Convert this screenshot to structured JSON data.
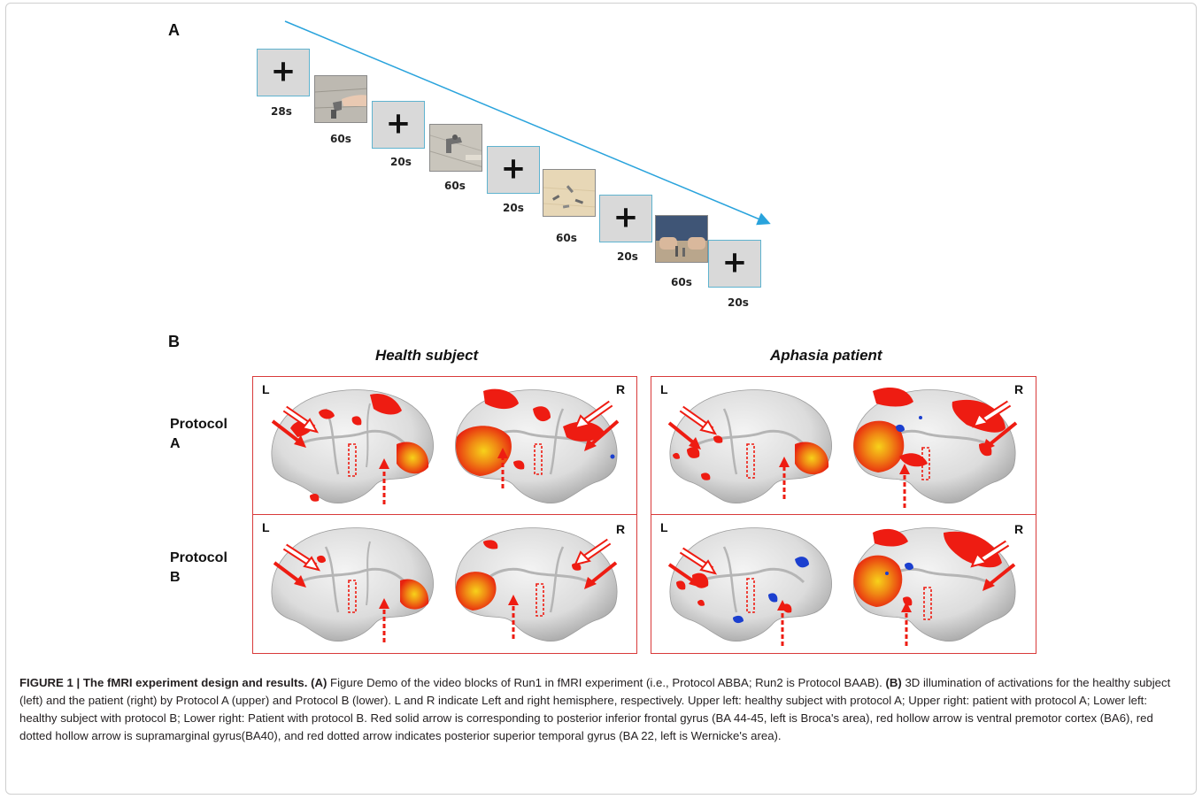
{
  "panel_a": {
    "label": "A",
    "timeline": [
      {
        "kind": "fixation",
        "symbol": "+",
        "duration": "28s"
      },
      {
        "kind": "video",
        "scene": "hand-turning-faucet",
        "duration": "60s"
      },
      {
        "kind": "fixation",
        "symbol": "+",
        "duration": "20s"
      },
      {
        "kind": "video",
        "scene": "faucet-on-wall",
        "duration": "60s"
      },
      {
        "kind": "fixation",
        "symbol": "+",
        "duration": "20s"
      },
      {
        "kind": "video",
        "scene": "objects-on-table",
        "duration": "60s"
      },
      {
        "kind": "fixation",
        "symbol": "+",
        "duration": "20s"
      },
      {
        "kind": "video",
        "scene": "hands-manipulating-objects",
        "duration": "60s"
      },
      {
        "kind": "fixation",
        "symbol": "+",
        "duration": "20s"
      }
    ],
    "arrow_color": "#29a3dc"
  },
  "panel_b": {
    "label": "B",
    "columns": [
      "Health subject",
      "Aphasia patient"
    ],
    "rows": [
      "Protocol\nA",
      "Protocol\nB"
    ],
    "hemisphere_left": "L",
    "hemisphere_right": "R",
    "frame_color": "#d93a3a",
    "activation_color": "#ee1c12",
    "deactivation_color": "#1b3fcf"
  },
  "caption": {
    "figure_label": "FIGURE 1 | The fMRI experiment design and results.",
    "a_tag": "(A)",
    "a_text": "Figure Demo of the video blocks of Run1 in fMRI experiment (i.e., Protocol ABBA; Run2 is Protocol BAAB).",
    "b_tag": "(B)",
    "b_text": "3D illumination of activations for the healthy subject (left) and the patient (right) by Protocol A (upper) and Protocol B (lower). L and R indicate Left and right hemisphere, respectively. Upper left: healthy subject with protocol A; Upper right: patient with protocol A; Lower left: healthy subject with protocol B; Lower right: Patient with protocol B. Red solid arrow is corresponding to posterior inferior frontal gyrus (BA 44-45, left is Broca's area), red hollow arrow is ventral premotor cortex (BA6), red dotted hollow arrow is supramarginal gyrus(BA40), and red dotted arrow indicates posterior superior temporal gyrus (BA 22, left is Wernicke's area)."
  }
}
